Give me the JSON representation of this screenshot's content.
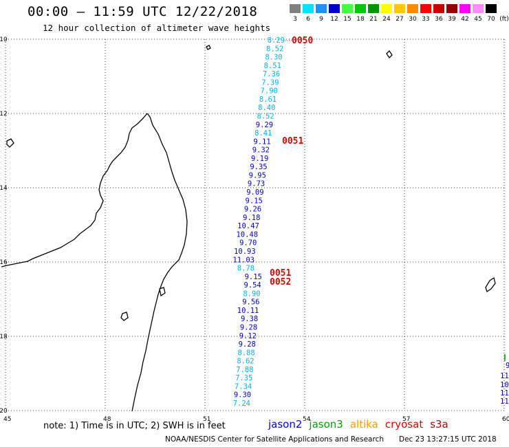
{
  "header": {
    "title": "00:00 – 11:59 UTC 12/22/2018",
    "subtitle": "12 hour collection of altimeter wave heights"
  },
  "legend": {
    "unit": "(ft)",
    "bins": [
      {
        "label": "3",
        "color": "#808080"
      },
      {
        "label": "6",
        "color": "#00e5ff"
      },
      {
        "label": "9",
        "color": "#1e90ff"
      },
      {
        "label": "12",
        "color": "#0000c8"
      },
      {
        "label": "15",
        "color": "#40ff40"
      },
      {
        "label": "18",
        "color": "#00c800"
      },
      {
        "label": "21",
        "color": "#009600"
      },
      {
        "label": "24",
        "color": "#ffff00"
      },
      {
        "label": "27",
        "color": "#ffc800"
      },
      {
        "label": "30",
        "color": "#ff8c00"
      },
      {
        "label": "33",
        "color": "#ff0000"
      },
      {
        "label": "36",
        "color": "#c80000"
      },
      {
        "label": "39",
        "color": "#960000"
      },
      {
        "label": "42",
        "color": "#ff00ff"
      },
      {
        "label": "45",
        "color": "#ff8cff"
      },
      {
        "label": "70",
        "color": "#000000"
      }
    ]
  },
  "axes": {
    "lon_ticks": [
      "45",
      "48",
      "51",
      "54",
      "57",
      "60"
    ],
    "lat_ticks": [
      "-10",
      "-12",
      "-14",
      "-16",
      "-18",
      "-20"
    ]
  },
  "track": {
    "values": [
      "8.29",
      "8.52",
      "8.30",
      "8.51",
      "7.36",
      "7.39",
      "7.90",
      "8.61",
      "8.40",
      "8.52",
      "9.29",
      "8.41",
      "9.11",
      "9.32",
      "9.19",
      "9.35",
      "9.95",
      "9.73",
      "9.09",
      "9.15",
      "9.26",
      "9.18",
      "10.47",
      "10.48",
      "9.70",
      "10.93",
      "11.03",
      "8.78",
      "9.15",
      "9.54",
      "8.90",
      "9.56",
      "10.11",
      "9.38",
      "9.28",
      "9.12",
      "9.28",
      "8.88",
      "8.62",
      "7.88",
      "7.35",
      "7.34",
      "9.30",
      "7.24"
    ],
    "colors": [
      "#00b4e6",
      "#00b4e6",
      "#00b4e6",
      "#00b4e6",
      "#00b4e6",
      "#00b4e6",
      "#00b4e6",
      "#00b4e6",
      "#00b4e6",
      "#00b4e6",
      "#0000c8",
      "#00b4e6",
      "#0000c8",
      "#0000c8",
      "#0000c8",
      "#0000c8",
      "#0000c8",
      "#0000c8",
      "#0000c8",
      "#0000c8",
      "#0000c8",
      "#0000c8",
      "#0000c8",
      "#0000c8",
      "#0000c8",
      "#0000c8",
      "#0000c8",
      "#00b4e6",
      "#0000c8",
      "#0000c8",
      "#00b4e6",
      "#0000c8",
      "#0000c8",
      "#0000c8",
      "#0000c8",
      "#0000c8",
      "#0000c8",
      "#00b4e6",
      "#00b4e6",
      "#00b4e6",
      "#00b4e6",
      "#00b4e6",
      "#0000c8",
      "#00b4e6"
    ],
    "time_labels": [
      "0050",
      "0051",
      "0051",
      "0052"
    ]
  },
  "edge_track": {
    "values": [
      "9",
      "11",
      "10.",
      "11.",
      "11.0"
    ],
    "colors": [
      "#0000c8",
      "#0000c8",
      "#0000c8",
      "#0000c8",
      "#0000c8"
    ]
  },
  "footer": {
    "note": "note: 1) Time is in UTC; 2) SWH is in feet",
    "satellites": [
      {
        "name": "jason2",
        "color": "#0000ff"
      },
      {
        "name": "jason3",
        "color": "#00a000"
      },
      {
        "name": "altika",
        "color": "#ff9900"
      },
      {
        "name": "cryosat",
        "color": "#e00000"
      },
      {
        "name": "s3a",
        "color": "#b40000"
      }
    ],
    "credit": "NOAA/NESDIS Center for Satellite Applications and Research",
    "timestamp": "Dec 23 13:27:15 UTC 2018"
  }
}
